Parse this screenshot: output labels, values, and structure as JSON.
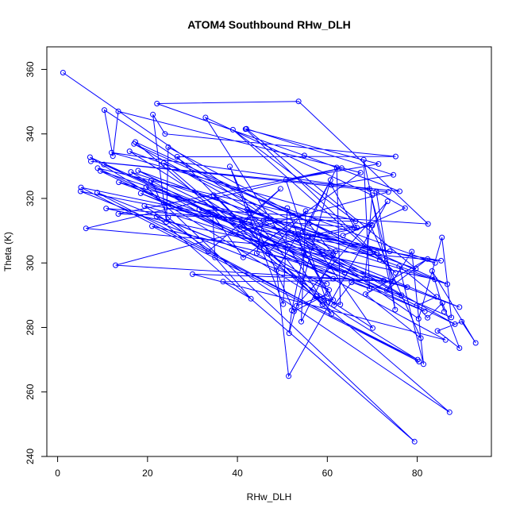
{
  "chart_data": {
    "type": "line",
    "title": "ATOM4 Southbound RHw_DLH",
    "xlabel": "RHw_DLH",
    "ylabel": "Theta (K)",
    "xlim": [
      -2.4,
      96.5
    ],
    "ylim": [
      240,
      367
    ],
    "x_ticks": [
      0,
      20,
      40,
      60,
      80
    ],
    "y_ticks": [
      240,
      260,
      280,
      300,
      320,
      340,
      360
    ],
    "grid": false,
    "legend": "none",
    "line_color": "#0000ff",
    "marker": "open-circle",
    "series": [
      {
        "points": [
          [
            1.2,
            359.0
          ],
          [
            80.3,
            282.7
          ],
          [
            85.5,
            307.9
          ],
          [
            87.6,
            283.1
          ],
          [
            31.5,
            316.6
          ],
          [
            82.4,
            312.1
          ],
          [
            53.6,
            350.1
          ],
          [
            22.1,
            349.4
          ],
          [
            54.9,
            333.3
          ],
          [
            76.1,
            322.2
          ],
          [
            7.4,
            331.5
          ],
          [
            73.6,
            322.0
          ],
          [
            12.9,
            299.3
          ],
          [
            74.6,
            294.2
          ],
          [
            69.4,
            322.9
          ],
          [
            12.0,
            334.2
          ],
          [
            70.0,
            311.6
          ],
          [
            45.0,
            304.9
          ],
          [
            9.5,
            328.5
          ],
          [
            86.7,
            293.4
          ],
          [
            17.0,
            336.9
          ],
          [
            88.4,
            281.0
          ],
          [
            17.9,
            328.6
          ],
          [
            83.9,
            294.9
          ],
          [
            10.8,
            316.9
          ],
          [
            66.6,
            310.9
          ],
          [
            8.9,
            329.4
          ],
          [
            61.3,
            295.1
          ],
          [
            16.0,
            334.6
          ],
          [
            84.0,
            300.0
          ],
          [
            13.6,
            325.0
          ],
          [
            89.4,
            286.3
          ],
          [
            10.3,
            330.5
          ],
          [
            81.7,
            285.0
          ],
          [
            18.5,
            321.6
          ],
          [
            63.9,
            296.9
          ],
          [
            7.2,
            332.8
          ],
          [
            80.1,
            270.0
          ],
          [
            5.2,
            323.4
          ],
          [
            73.9,
            303.6
          ],
          [
            5.1,
            322.2
          ],
          [
            60.4,
            291.6
          ],
          [
            16.3,
            328.2
          ],
          [
            71.0,
            303.1
          ],
          [
            17.3,
            337.5
          ],
          [
            87.2,
            253.7
          ],
          [
            19.3,
            317.7
          ],
          [
            77.8,
            292.5
          ],
          [
            21.0,
            311.4
          ],
          [
            80.4,
            269.4
          ],
          [
            8.8,
            321.8
          ],
          [
            59.9,
            293.5
          ],
          [
            22.0,
            314.4
          ],
          [
            79.4,
            244.6
          ],
          [
            19.7,
            323.5
          ],
          [
            59.1,
            302.7
          ],
          [
            10.4,
            347.4
          ],
          [
            12.3,
            333.1
          ],
          [
            13.5,
            347.0
          ],
          [
            67.4,
            328.0
          ],
          [
            41.3,
            301.7
          ],
          [
            34.5,
            315.1
          ],
          [
            35.0,
            301.7
          ],
          [
            43.0,
            288.9
          ],
          [
            36.8,
            294.2
          ],
          [
            72.5,
            294.6
          ],
          [
            30.0,
            296.5
          ],
          [
            86.3,
            276.1
          ],
          [
            20.8,
            325.5
          ],
          [
            24.6,
            314.1
          ],
          [
            33.5,
            303.6
          ],
          [
            49.6,
            323.0
          ],
          [
            40.6,
            311.2
          ],
          [
            85.3,
            300.7
          ],
          [
            6.3,
            310.7
          ],
          [
            63.2,
            329.4
          ],
          [
            13.5,
            315.2
          ],
          [
            66.3,
            312.9
          ],
          [
            39.0,
            341.3
          ],
          [
            75.2,
            296.9
          ],
          [
            41.8,
            341.5
          ],
          [
            71.4,
            330.7
          ],
          [
            50.8,
            325.7
          ],
          [
            59.9,
            287.7
          ],
          [
            23.6,
            331.0
          ],
          [
            71.7,
            301.0
          ],
          [
            24.6,
            335.9
          ],
          [
            24.2,
            312.7
          ],
          [
            21.2,
            346.0
          ],
          [
            23.9,
            340.0
          ],
          [
            75.2,
            333.0
          ],
          [
            26.6,
            332.9
          ],
          [
            60.9,
            284.1
          ],
          [
            32.9,
            345.1
          ],
          [
            70.0,
            321.0
          ],
          [
            68.4,
            295.1
          ],
          [
            34.7,
            321.0
          ],
          [
            58.9,
            287.1
          ],
          [
            42.2,
            316.6
          ],
          [
            79.7,
            298.2
          ],
          [
            42.0,
            341.6
          ],
          [
            74.7,
            327.3
          ],
          [
            60.9,
            324.1
          ],
          [
            66.0,
            311.1
          ],
          [
            55.8,
            308.5
          ],
          [
            70.1,
            279.8
          ],
          [
            44.3,
            303.0
          ],
          [
            45.8,
            313.1
          ],
          [
            76.5,
            290.0
          ],
          [
            46.8,
            302.9
          ],
          [
            55.2,
            316.1
          ],
          [
            54.2,
            281.8
          ],
          [
            61.8,
            303.6
          ],
          [
            54.5,
            309.6
          ],
          [
            60.7,
            325.7
          ],
          [
            51.5,
            278.2
          ],
          [
            52.1,
            285.3
          ],
          [
            54.8,
            303.5
          ],
          [
            51.1,
            317.0
          ],
          [
            50.2,
            287.2
          ],
          [
            38.3,
            329.9
          ],
          [
            52.6,
            285.0
          ],
          [
            60.1,
            290.4
          ],
          [
            53.1,
            286.7
          ],
          [
            73.4,
            319.1
          ],
          [
            51.4,
            264.9
          ],
          [
            48.7,
            297.8
          ],
          [
            53.5,
            309.0
          ],
          [
            61.3,
            302.7
          ],
          [
            55.9,
            312.2
          ],
          [
            62.1,
            329.6
          ],
          [
            62.9,
            287.1
          ],
          [
            57.5,
            289.6
          ],
          [
            61.3,
            288.5
          ],
          [
            53.3,
            307.4
          ],
          [
            61.5,
            286.9
          ],
          [
            65.4,
            294.0
          ],
          [
            69.4,
            292.0
          ],
          [
            68.1,
            332.0
          ],
          [
            75.1,
            285.5
          ],
          [
            70.9,
            322.1
          ],
          [
            77.3,
            317.0
          ],
          [
            63.5,
            308.5
          ],
          [
            69.5,
            312.0
          ],
          [
            80.8,
            276.7
          ],
          [
            68.5,
            290.3
          ],
          [
            82.3,
            301.2
          ],
          [
            73.2,
            291.6
          ],
          [
            78.8,
            303.5
          ],
          [
            81.4,
            268.6
          ],
          [
            76.0,
            299.0
          ],
          [
            84.3,
            289.5
          ],
          [
            79.9,
            286.8
          ],
          [
            82.3,
            283.0
          ],
          [
            85.6,
            287.6
          ],
          [
            89.4,
            273.6
          ],
          [
            84.5,
            278.9
          ],
          [
            89.9,
            281.8
          ],
          [
            93.0,
            275.2
          ],
          [
            83.3,
            297.5
          ],
          [
            86.0,
            284.9
          ]
        ]
      }
    ]
  }
}
